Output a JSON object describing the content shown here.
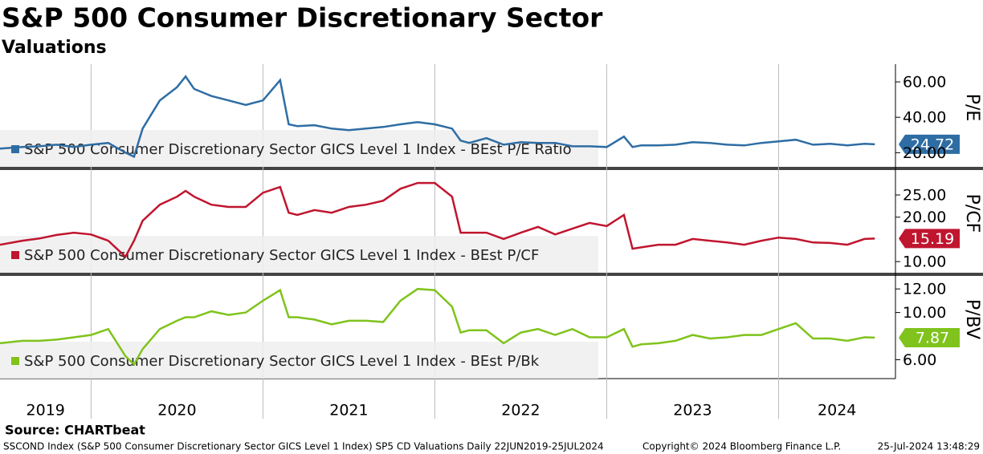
{
  "title": "S&P 500 Consumer Discretionary Sector",
  "subtitle": "Valuations",
  "source": "Source: CHARTbeat",
  "footer": [
    "SSCOND Index (S&P 500 Consumer Discretionary Sector GICS Level 1 Index) SP5 CD Valuations  Daily 22JUN2019-25JUL2024",
    "Copyright© 2024 Bloomberg Finance L.P.",
    "25-Jul-2024 13:48:29"
  ],
  "chart_data": [
    {
      "type": "line",
      "ylabel": "P/E",
      "x": [
        2019.47,
        2019.6,
        2019.7,
        2019.8,
        2019.9,
        2020.0,
        2020.1,
        2020.2,
        2020.25,
        2020.3,
        2020.4,
        2020.5,
        2020.55,
        2020.6,
        2020.7,
        2020.8,
        2020.9,
        2021.0,
        2021.1,
        2021.15,
        2021.2,
        2021.3,
        2021.4,
        2021.5,
        2021.6,
        2021.7,
        2021.8,
        2021.9,
        2022.0,
        2022.1,
        2022.15,
        2022.2,
        2022.3,
        2022.4,
        2022.5,
        2022.6,
        2022.7,
        2022.8,
        2022.9,
        2023.0,
        2023.1,
        2023.15,
        2023.2,
        2023.3,
        2023.4,
        2023.5,
        2023.6,
        2023.7,
        2023.8,
        2023.9,
        2024.0,
        2024.1,
        2024.2,
        2024.3,
        2024.4,
        2024.5,
        2024.56
      ],
      "series": [
        {
          "name": "S&P 500 Consumer Discretionary Sector GICS Level 1 Index - BEst P/E Ratio",
          "color": "#2e6da4",
          "values": [
            22.3,
            23.2,
            23.6,
            24.5,
            23.2,
            24.5,
            25.5,
            20,
            17.7,
            33.6,
            49.5,
            57,
            63,
            56,
            52,
            49.5,
            47,
            49.5,
            61,
            36,
            35,
            35.5,
            33.6,
            32.7,
            33.6,
            34.5,
            36,
            37.3,
            36,
            33.6,
            26.8,
            25.5,
            28.2,
            24.5,
            25.9,
            25.5,
            25.5,
            23.6,
            23.6,
            23.2,
            29.1,
            23.2,
            24.1,
            24.1,
            24.5,
            25.9,
            25.5,
            24.5,
            24.1,
            25.5,
            26.4,
            27.3,
            24.5,
            25,
            24.1,
            25,
            24.72
          ]
        }
      ],
      "ylim": [
        12,
        70
      ],
      "yticks": [
        {
          "value": 20,
          "label": "20.00"
        },
        {
          "value": 40,
          "label": "40.00"
        },
        {
          "value": 60,
          "label": "60.00"
        }
      ]
    },
    {
      "type": "line",
      "ylabel": "P/CF",
      "x": [
        2019.47,
        2019.6,
        2019.7,
        2019.8,
        2019.9,
        2020.0,
        2020.1,
        2020.2,
        2020.25,
        2020.3,
        2020.4,
        2020.5,
        2020.55,
        2020.6,
        2020.7,
        2020.8,
        2020.9,
        2021.0,
        2021.1,
        2021.15,
        2021.2,
        2021.3,
        2021.4,
        2021.5,
        2021.6,
        2021.7,
        2021.8,
        2021.9,
        2022.0,
        2022.1,
        2022.15,
        2022.2,
        2022.3,
        2022.4,
        2022.5,
        2022.6,
        2022.7,
        2022.8,
        2022.9,
        2023.0,
        2023.1,
        2023.15,
        2023.2,
        2023.3,
        2023.4,
        2023.5,
        2023.6,
        2023.7,
        2023.8,
        2023.9,
        2024.0,
        2024.1,
        2024.2,
        2024.3,
        2024.4,
        2024.5,
        2024.56
      ],
      "series": [
        {
          "name": "S&P 500 Consumer Discretionary Sector GICS Level 1 Index - BEst P/CF",
          "color": "#c0152f",
          "values": [
            13.8,
            14.7,
            15.2,
            16,
            16.5,
            16.1,
            14.7,
            11.1,
            14.7,
            19.2,
            22.8,
            24.6,
            25.9,
            24.6,
            22.8,
            22.3,
            22.3,
            25.5,
            26.8,
            21,
            20.5,
            21.6,
            21,
            22.3,
            22.8,
            23.7,
            26.4,
            27.7,
            27.7,
            24.6,
            16.5,
            16.5,
            16.5,
            15.1,
            16.5,
            17.8,
            16.1,
            17.4,
            18.7,
            18,
            20.5,
            12.9,
            13.2,
            13.8,
            13.8,
            15.1,
            14.7,
            14.3,
            13.8,
            14.7,
            15.4,
            15.1,
            14.3,
            14.2,
            13.8,
            15.1,
            15.19
          ]
        }
      ],
      "ylim": [
        7.5,
        30.6
      ],
      "yticks": [
        {
          "value": 10,
          "label": "10.00"
        },
        {
          "value": 20,
          "label": "20.00"
        },
        {
          "value": 25,
          "label": "25.00"
        }
      ]
    },
    {
      "type": "line",
      "ylabel": "P/BV",
      "x": [
        2019.47,
        2019.6,
        2019.7,
        2019.8,
        2019.9,
        2020.0,
        2020.1,
        2020.2,
        2020.25,
        2020.3,
        2020.4,
        2020.5,
        2020.55,
        2020.6,
        2020.7,
        2020.8,
        2020.9,
        2021.0,
        2021.1,
        2021.15,
        2021.2,
        2021.3,
        2021.4,
        2021.5,
        2021.6,
        2021.7,
        2021.8,
        2021.9,
        2022.0,
        2022.1,
        2022.15,
        2022.2,
        2022.3,
        2022.4,
        2022.5,
        2022.6,
        2022.7,
        2022.8,
        2022.9,
        2023.0,
        2023.1,
        2023.15,
        2023.2,
        2023.3,
        2023.4,
        2023.5,
        2023.6,
        2023.7,
        2023.8,
        2023.9,
        2024.0,
        2024.1,
        2024.2,
        2024.3,
        2024.4,
        2024.5,
        2024.56
      ],
      "series": [
        {
          "name": "S&P 500 Consumer Discretionary Sector GICS Level 1 Index - BEst P/Bk",
          "color": "#7fc31c",
          "values": [
            7.4,
            7.6,
            7.6,
            7.7,
            7.9,
            8.1,
            8.6,
            6.3,
            5.6,
            6.9,
            8.6,
            9.3,
            9.6,
            9.6,
            10.1,
            9.8,
            10,
            11,
            11.9,
            9.6,
            9.6,
            9.4,
            9,
            9.3,
            9.3,
            9.2,
            11,
            12,
            11.9,
            10.5,
            8.3,
            8.5,
            8.5,
            7.4,
            8.3,
            8.6,
            8.1,
            8.6,
            7.9,
            7.9,
            8.6,
            7.1,
            7.3,
            7.4,
            7.6,
            8.1,
            7.8,
            7.9,
            8.1,
            8.1,
            8.6,
            9.1,
            7.8,
            7.8,
            7.6,
            7.9,
            7.87
          ]
        }
      ],
      "ylim": [
        4.4,
        13.1
      ],
      "yticks": [
        {
          "value": 6,
          "label": "6.00"
        },
        {
          "value": 10,
          "label": "10.00"
        },
        {
          "value": 12,
          "label": "12.00"
        }
      ],
      "xlim": [
        2019.47,
        2024.68
      ],
      "xticks": [
        {
          "value": 2019,
          "label": "2019"
        },
        {
          "value": 2020,
          "label": "2020"
        },
        {
          "value": 2021,
          "label": "2021"
        },
        {
          "value": 2022,
          "label": "2022"
        },
        {
          "value": 2023,
          "label": "2023"
        },
        {
          "value": 2024,
          "label": "2024"
        }
      ]
    }
  ]
}
